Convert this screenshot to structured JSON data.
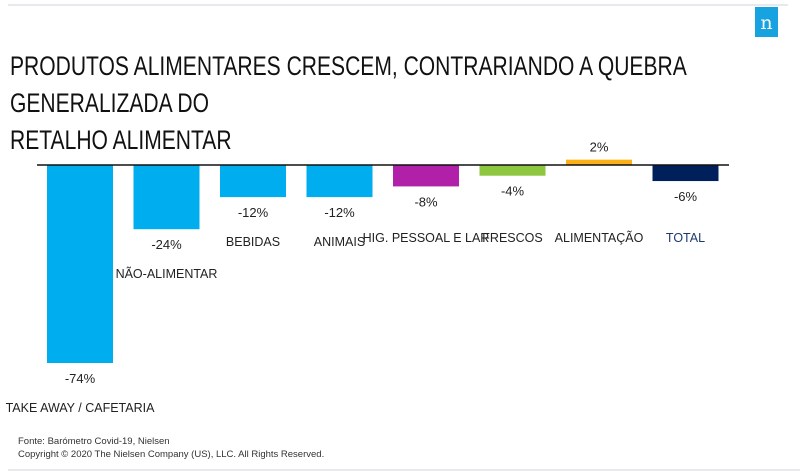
{
  "header": {
    "title_line1": "PRODUTOS ALIMENTARES CRESCEM, CONTRARIANDO A QUEBRA GENERALIZADA DO",
    "title_line2": "RETALHO ALIMENTAR",
    "logo_glyph": "n",
    "logo_color": "#17a2e0"
  },
  "chart_data": {
    "type": "bar",
    "title": "PRODUTOS ALIMENTARES CRESCEM, CONTRARIANDO A QUEBRA GENERALIZADA DO RETALHO ALIMENTAR",
    "xlabel": "",
    "ylabel": "",
    "ylim": [
      -74,
      2
    ],
    "grid": false,
    "legend": "none",
    "categories": [
      "TAKE AWAY / CAFETARIA",
      "NÃO-ALIMENTAR",
      "BEBIDAS",
      "ANIMAIS",
      "HIG. PESSOAL E LAR",
      "FRESCOS",
      "ALIMENTAÇÃO",
      "TOTAL"
    ],
    "values": [
      -74,
      -24,
      -12,
      -12,
      -8,
      -4,
      2,
      -6
    ],
    "value_labels": [
      "-74%",
      "-24%",
      "-12%",
      "-12%",
      "-8%",
      "-4%",
      "2%",
      "-6%"
    ],
    "colors": [
      "#00aeef",
      "#00aeef",
      "#00aeef",
      "#00aeef",
      "#b120a8",
      "#8dc63f",
      "#fbb018",
      "#00205b"
    ],
    "highlight_category": "TOTAL"
  },
  "footer": {
    "source": "Fonte: Barómetro Covid-19, Nielsen",
    "copyright": "Copyright © 2020 The Nielsen Company (US), LLC. All Rights Reserved."
  }
}
